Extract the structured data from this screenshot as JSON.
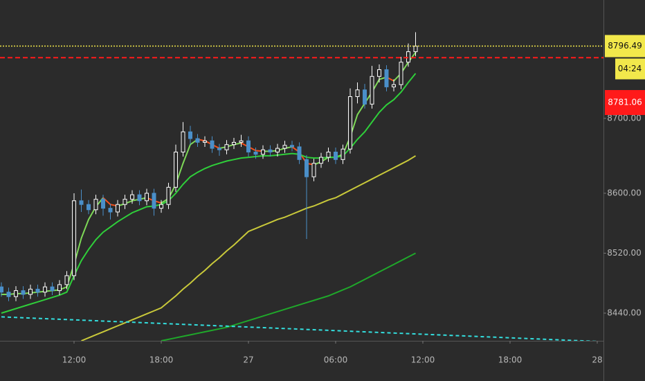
{
  "chart_data": {
    "type": "candlestick",
    "categories": [
      null,
      null,
      null,
      null,
      null,
      null,
      null,
      null,
      null,
      null,
      "12:00",
      null,
      null,
      null,
      null,
      null,
      null,
      null,
      null,
      null,
      null,
      null,
      "18:00",
      null,
      null,
      null,
      null,
      null,
      null,
      null,
      null,
      null,
      null,
      null,
      "27",
      null,
      null,
      null,
      null,
      null,
      null,
      null,
      null,
      null,
      null,
      null,
      "06:00",
      null,
      null,
      null,
      null,
      null,
      null,
      null,
      null,
      null,
      null,
      null,
      "12:00",
      null,
      null,
      null,
      null,
      null,
      null,
      null,
      null,
      null,
      null,
      null,
      "18:00",
      null,
      null,
      null,
      null,
      null,
      null,
      null,
      null,
      null,
      null,
      null,
      "28"
    ],
    "open": [
      8475,
      8468,
      8462,
      8470,
      8465,
      8472,
      8468,
      8475,
      8470,
      8478,
      8490,
      8590,
      8585,
      8578,
      8592,
      8580,
      8575,
      8585,
      8592,
      8598,
      8590,
      8600,
      8580,
      8585,
      8608,
      8655,
      8682,
      8673,
      8668,
      8670,
      8660,
      8658,
      8665,
      8668,
      8670,
      8655,
      8652,
      8658,
      8655,
      8660,
      8664,
      8662,
      8645,
      8622,
      8640,
      8648,
      8655,
      8645,
      8659,
      8729,
      8738,
      8719,
      8756,
      8765,
      8742,
      8745,
      8775,
      8789,
      null,
      null,
      null,
      null,
      null,
      null,
      null,
      null,
      null,
      null,
      null,
      null,
      null,
      null,
      null,
      null,
      null,
      null,
      null,
      null,
      null,
      null,
      null,
      null,
      null
    ],
    "high": [
      8481,
      8474,
      8476,
      8476,
      8478,
      8478,
      8481,
      8481,
      8484,
      8496,
      8600,
      8605,
      8591,
      8598,
      8598,
      8586,
      8591,
      8598,
      8604,
      8604,
      8606,
      8606,
      8591,
      8614,
      8665,
      8695,
      8690,
      8679,
      8676,
      8676,
      8666,
      8671,
      8674,
      8678,
      8676,
      8661,
      8664,
      8664,
      8666,
      8670,
      8670,
      8668,
      8651,
      8646,
      8654,
      8661,
      8661,
      8665,
      8740,
      8748,
      8746,
      8770,
      8772,
      8771,
      8752,
      8782,
      8800,
      8815,
      null,
      null,
      null,
      null,
      null,
      null,
      null,
      null,
      null,
      null,
      null,
      null,
      null,
      null,
      null,
      null,
      null,
      null,
      null,
      null,
      null,
      null,
      null,
      null,
      null
    ],
    "low": [
      8462,
      8456,
      8456,
      8459,
      8459,
      8462,
      8462,
      8464,
      8464,
      8472,
      8484,
      8575,
      8572,
      8572,
      8570,
      8565,
      8569,
      8579,
      8586,
      8584,
      8584,
      8570,
      8574,
      8579,
      8602,
      8649,
      8665,
      8662,
      8662,
      8654,
      8650,
      8652,
      8659,
      8662,
      8649,
      8646,
      8646,
      8649,
      8649,
      8654,
      8656,
      8639,
      8539,
      8616,
      8634,
      8642,
      8639,
      8639,
      8653,
      8720,
      8713,
      8713,
      8748,
      8736,
      8736,
      8739,
      8769,
      8783,
      null,
      null,
      null,
      null,
      null,
      null,
      null,
      null,
      null,
      null,
      null,
      null,
      null,
      null,
      null,
      null,
      null,
      null,
      null,
      null,
      null,
      null,
      null,
      null,
      null
    ],
    "close": [
      8468,
      8462,
      8470,
      8465,
      8472,
      8468,
      8475,
      8470,
      8478,
      8490,
      8590,
      8585,
      8578,
      8592,
      8580,
      8575,
      8585,
      8592,
      8598,
      8590,
      8600,
      8580,
      8585,
      8608,
      8655,
      8682,
      8673,
      8668,
      8670,
      8660,
      8658,
      8665,
      8668,
      8670,
      8655,
      8652,
      8658,
      8655,
      8660,
      8664,
      8662,
      8645,
      8622,
      8640,
      8648,
      8655,
      8645,
      8659,
      8729,
      8738,
      8719,
      8756,
      8765,
      8742,
      8745,
      8775,
      8789,
      8796.49,
      null,
      null,
      null,
      null,
      null,
      null,
      null,
      null,
      null,
      null,
      null,
      null,
      null,
      null,
      null,
      null,
      null,
      null,
      null,
      null,
      null,
      null,
      null,
      null,
      null
    ],
    "up_color": "#ffffff",
    "down_color": "#4a8fc9",
    "lines": [
      {
        "up_color": "#7ed957",
        "down_color": "#f4511e",
        "values": [
          8465,
          8465,
          8466,
          8466,
          8467,
          8468,
          8469,
          8470,
          8471,
          8475,
          8505,
          8540,
          8565,
          8582,
          8594,
          8585,
          8583,
          8586,
          8590,
          8592,
          8594,
          8590,
          8587,
          8593,
          8612,
          8640,
          8665,
          8672,
          8670,
          8665,
          8660,
          8662,
          8665,
          8667,
          8662,
          8657,
          8656,
          8656,
          8657,
          8660,
          8662,
          8655,
          8640,
          8638,
          8642,
          8648,
          8648,
          8652,
          8675,
          8705,
          8720,
          8735,
          8752,
          8755,
          8750,
          8760,
          8775,
          8788,
          null,
          null,
          null,
          null,
          null,
          null,
          null,
          null,
          null,
          null,
          null,
          null,
          null,
          null,
          null,
          null,
          null,
          null,
          null,
          null,
          null,
          null,
          null,
          null,
          null
        ]
      },
      {
        "color": "#2fcf3a",
        "values": [
          8440,
          8443,
          8446,
          8449,
          8452,
          8455,
          8458,
          8461,
          8464,
          8468,
          8490,
          8510,
          8525,
          8538,
          8548,
          8555,
          8562,
          8568,
          8574,
          8578,
          8582,
          8583,
          8585,
          8590,
          8600,
          8612,
          8622,
          8628,
          8633,
          8637,
          8640,
          8643,
          8645,
          8647,
          8648,
          8649,
          8650,
          8650,
          8651,
          8652,
          8653,
          8652,
          8648,
          8647,
          8647,
          8648,
          8648,
          8650,
          8660,
          8672,
          8682,
          8695,
          8708,
          8718,
          8725,
          8735,
          8748,
          8760,
          null,
          null,
          null,
          null,
          null,
          null,
          null,
          null,
          null,
          null,
          null,
          null,
          null,
          null,
          null,
          null,
          null,
          null,
          null,
          null,
          null,
          null,
          null,
          null,
          null
        ]
      },
      {
        "color": "#c9c93a",
        "values": [
          null,
          null,
          null,
          null,
          null,
          null,
          null,
          null,
          null,
          null,
          null,
          8403,
          8407,
          8411,
          8415,
          8419,
          8423,
          8427,
          8431,
          8435,
          8439,
          8443,
          8447,
          8455,
          8463,
          8472,
          8480,
          8489,
          8497,
          8506,
          8514,
          8523,
          8531,
          8540,
          8549,
          8553,
          8557,
          8561,
          8565,
          8568,
          8572,
          8576,
          8580,
          8583,
          8587,
          8591,
          8594,
          8599,
          8604,
          8609,
          8614,
          8619,
          8624,
          8629,
          8634,
          8639,
          8644,
          8650,
          null,
          null,
          null,
          null,
          null,
          null,
          null,
          null,
          null,
          null,
          null,
          null,
          null,
          null,
          null,
          null,
          null,
          null,
          null,
          null,
          null,
          null,
          null,
          null,
          null
        ]
      },
      {
        "color": "#1fa82a",
        "values": [
          null,
          null,
          null,
          null,
          null,
          null,
          null,
          null,
          null,
          null,
          null,
          null,
          null,
          null,
          null,
          null,
          null,
          null,
          null,
          null,
          null,
          null,
          8403,
          8405,
          8407,
          8409,
          8411,
          8413,
          8415,
          8417,
          8419,
          8421,
          8424,
          8427,
          8430,
          8433,
          8436,
          8439,
          8442,
          8445,
          8448,
          8451,
          8454,
          8457,
          8460,
          8463,
          8467,
          8471,
          8475,
          8480,
          8485,
          8490,
          8495,
          8500,
          8505,
          8510,
          8515,
          8520,
          null,
          null,
          null,
          null,
          null,
          null,
          null,
          null,
          null,
          null,
          null,
          null,
          null,
          null,
          null,
          null,
          null,
          null,
          null,
          null,
          null,
          null,
          null,
          null,
          null
        ]
      },
      {
        "color": "#33dede",
        "dashed": true,
        "values": [
          8435,
          8434.6,
          8434.2,
          8433.8,
          8433.4,
          8433,
          8432.6,
          8432.2,
          8431.8,
          8431.4,
          8431,
          8430.6,
          8430.2,
          8429.8,
          8429.4,
          8429,
          8428.6,
          8428.2,
          8427.8,
          8427.4,
          8427,
          8426.6,
          8426.2,
          8425.8,
          8425.4,
          8425,
          8424.6,
          8424.2,
          8423.8,
          8423.4,
          8423,
          8422.6,
          8422.2,
          8421.8,
          8421.4,
          8421,
          8420.6,
          8420.2,
          8419.8,
          8419.4,
          8419,
          8418.6,
          8418.2,
          8417.8,
          8417.4,
          8417,
          8416.6,
          8416.2,
          8415.8,
          8415.4,
          8415,
          8414.6,
          8414.2,
          8413.8,
          8413.4,
          8413,
          8412.6,
          8412.2,
          8411.8,
          8411.4,
          8411,
          8410.6,
          8410.2,
          8409.8,
          8409.4,
          8409,
          8408.6,
          8408.2,
          8407.8,
          8407.4,
          8407,
          8406.6,
          8406.2,
          8405.8,
          8405.4,
          8405,
          8404.6,
          8404.2,
          8403.8,
          8403.4,
          8403,
          8402.6,
          8402.2
        ]
      }
    ],
    "last_price": 8796.49,
    "last_price_color": "#f2e84b",
    "countdown": "04:24",
    "alert_price": 8781.06,
    "alert_color": "#ff1a1a",
    "ylim": [
      8403,
      8858
    ],
    "yticks": [
      {
        "value": 8440,
        "label": "8440.00"
      },
      {
        "value": 8520,
        "label": "8520.00"
      },
      {
        "value": 8600,
        "label": "8600.00"
      },
      {
        "value": 8700,
        "label": "8700.00"
      }
    ]
  }
}
